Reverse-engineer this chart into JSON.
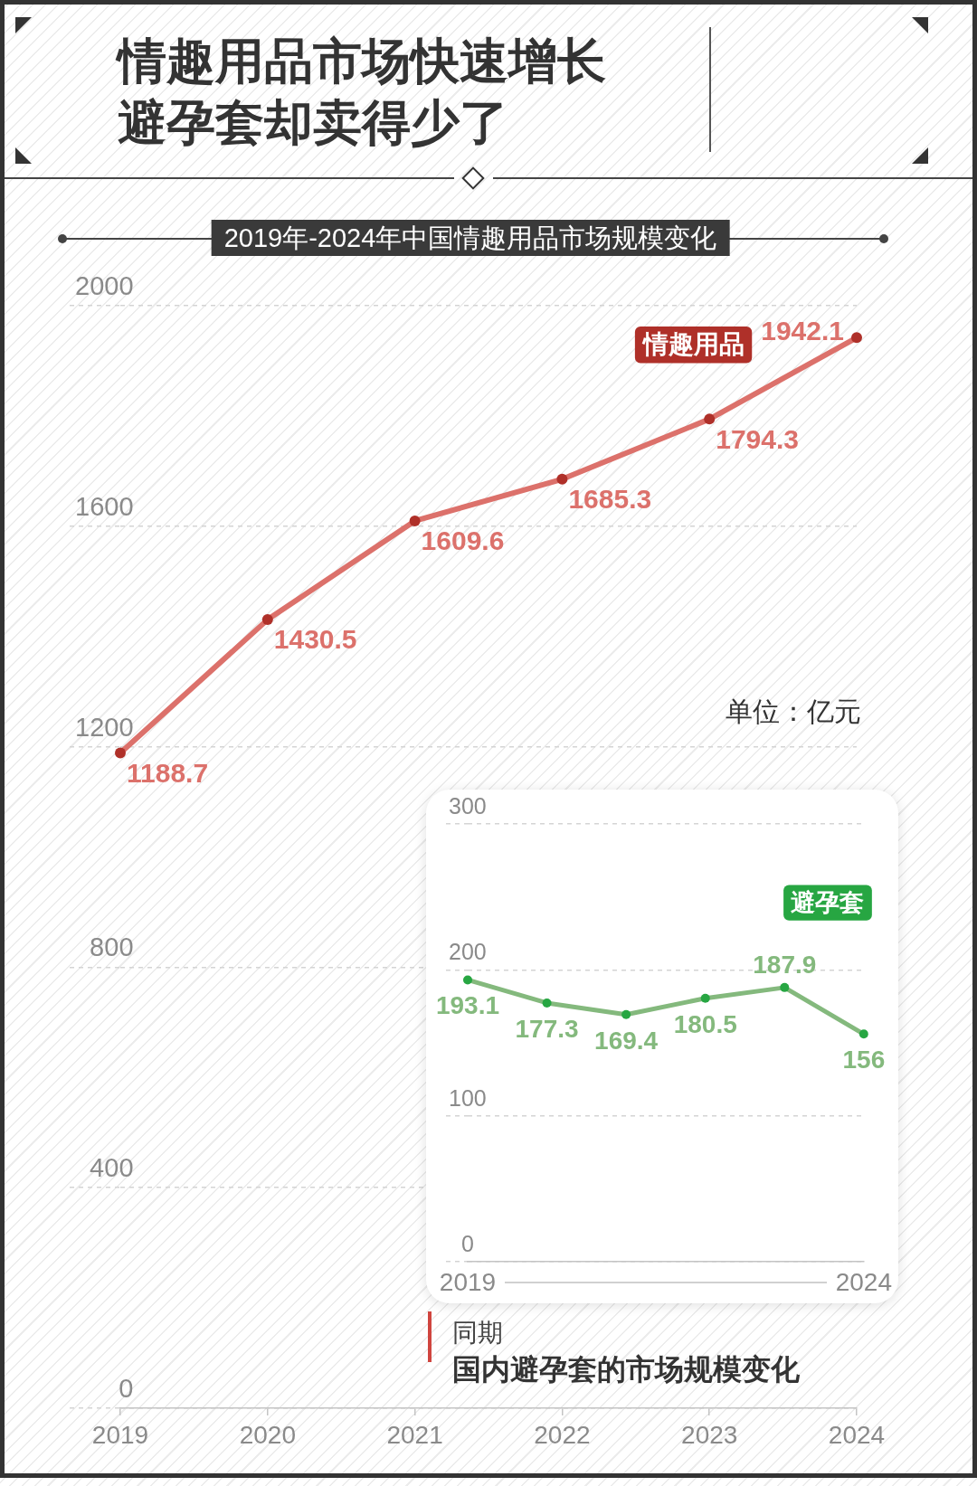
{
  "chart_data": [
    {
      "type": "line",
      "title": "情趣用品市场快速增长避孕套却卖得少了",
      "subtitle": "2019年-2024年中国情趣用品市场规模变化",
      "annotations": [
        "单位：亿元"
      ],
      "categories": [
        "2019",
        "2020",
        "2021",
        "2022",
        "2023",
        "2024"
      ],
      "series": [
        {
          "name": "情趣用品",
          "color": "#dc716b",
          "values": [
            1188.7,
            1430.5,
            1609.6,
            1685.3,
            1794.3,
            1942.1
          ]
        }
      ],
      "ylim": [
        0,
        2000
      ],
      "yticks": [
        0,
        400,
        800,
        1200,
        1600,
        2000
      ],
      "grid": "y",
      "legend": false,
      "marker": "circle",
      "line_style": "solid",
      "data_labels": true
    },
    {
      "type": "line",
      "annotations": [
        "同期",
        "国内避孕套的市场规模变化"
      ],
      "categories": [
        "2019",
        null,
        null,
        null,
        null,
        "2024"
      ],
      "series": [
        {
          "name": "避孕套",
          "color": "#84b97d",
          "values": [
            193.1,
            177.3,
            169.4,
            180.5,
            187.9,
            156
          ]
        }
      ],
      "ylim": [
        0,
        300
      ],
      "yticks": [
        0,
        100,
        200,
        300
      ],
      "grid": "y",
      "legend": false,
      "marker": "circle",
      "line_style": "solid",
      "data_labels": true
    }
  ]
}
